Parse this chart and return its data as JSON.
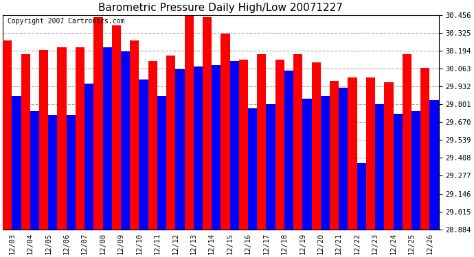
{
  "title": "Barometric Pressure Daily High/Low 20071227",
  "copyright": "Copyright 2007 Cartronics.com",
  "dates": [
    "12/03",
    "12/04",
    "12/05",
    "12/06",
    "12/07",
    "12/08",
    "12/09",
    "12/10",
    "12/11",
    "12/12",
    "12/13",
    "12/14",
    "12/15",
    "12/16",
    "12/17",
    "12/18",
    "12/19",
    "12/20",
    "12/21",
    "12/22",
    "12/23",
    "12/24",
    "12/25",
    "12/26"
  ],
  "highs": [
    30.27,
    30.17,
    30.2,
    30.22,
    30.22,
    30.44,
    30.38,
    30.27,
    30.12,
    30.16,
    30.45,
    30.44,
    30.32,
    30.13,
    30.17,
    30.13,
    30.17,
    30.11,
    29.97,
    30.0,
    30.0,
    29.96,
    30.17,
    30.07
  ],
  "lows": [
    29.86,
    29.75,
    29.72,
    29.72,
    29.95,
    30.22,
    30.19,
    29.98,
    29.86,
    30.06,
    30.08,
    30.09,
    30.12,
    29.77,
    29.8,
    30.05,
    29.84,
    29.86,
    29.92,
    29.37,
    29.8,
    29.73,
    29.75,
    29.83
  ],
  "ymin": 28.884,
  "ymax": 30.456,
  "yticks": [
    28.884,
    29.015,
    29.146,
    29.277,
    29.408,
    29.539,
    29.67,
    29.801,
    29.932,
    30.063,
    30.194,
    30.325,
    30.456
  ],
  "high_color": "#ff0000",
  "low_color": "#0000ff",
  "bg_color": "#ffffff",
  "plot_bg_color": "#ffffff",
  "grid_color": "#aaaaaa",
  "title_fontsize": 11,
  "copyright_fontsize": 7
}
